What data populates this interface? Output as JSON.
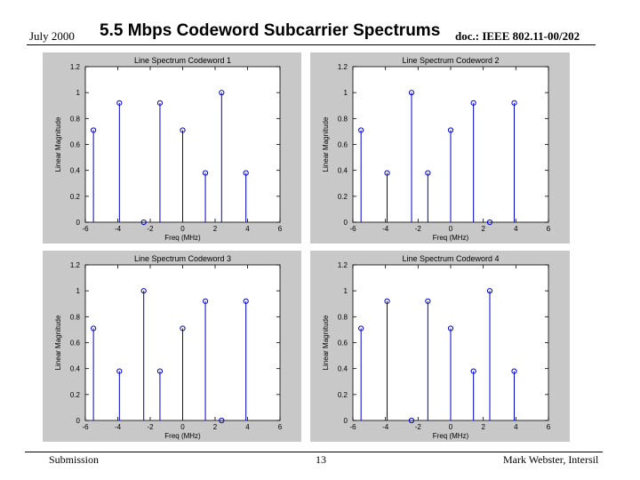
{
  "header": {
    "date": "July 2000",
    "title": "5.5 Mbps Codeword Subcarrier Spectrums",
    "doc": "doc.: IEEE 802.11-00/202"
  },
  "footer": {
    "left": "Submission",
    "page": "13",
    "right": "Mark Webster, Intersil"
  },
  "colors": {
    "stem": "#0000cc",
    "panel_bg": "#c8c8c8",
    "plot_bg": "#ffffff"
  },
  "chart_data": [
    {
      "type": "scatter",
      "title": "Line Spectrum Codeword 1",
      "xlabel": "Freq (MHz)",
      "ylabel": "Linear Magnitude",
      "xlim": [
        -6,
        6
      ],
      "ylim": [
        0,
        1.2
      ],
      "xticks": [
        "-6",
        "-4",
        "-2",
        "0",
        "2",
        "4",
        "6"
      ],
      "yticks": [
        "0",
        "0.2",
        "0.4",
        "0.6",
        "0.8",
        "1",
        "1.2"
      ],
      "x": [
        -5.5,
        -3.9,
        -2.4,
        -1.4,
        0,
        1.4,
        2.4,
        3.9
      ],
      "y": [
        0.71,
        0.92,
        0.0,
        0.92,
        0.71,
        0.38,
        1.0,
        0.38
      ]
    },
    {
      "type": "scatter",
      "title": "Line Spectrum Codeword 2",
      "xlabel": "Freq (MHz)",
      "ylabel": "Linear Magnitude",
      "xlim": [
        -6,
        6
      ],
      "ylim": [
        0,
        1.2
      ],
      "xticks": [
        "-6",
        "-4",
        "-2",
        "0",
        "2",
        "4",
        "6"
      ],
      "yticks": [
        "0",
        "0.2",
        "0.4",
        "0.6",
        "0.8",
        "1",
        "1.2"
      ],
      "x": [
        -5.5,
        -3.9,
        -2.4,
        -1.4,
        0,
        1.4,
        2.4,
        3.9
      ],
      "y": [
        0.71,
        0.38,
        1.0,
        0.38,
        0.71,
        0.92,
        0.0,
        0.92
      ]
    },
    {
      "type": "scatter",
      "title": "Line Spectrum Codeword 3",
      "xlabel": "Freq (MHz)",
      "ylabel": "Linear Magnitude",
      "xlim": [
        -6,
        6
      ],
      "ylim": [
        0,
        1.2
      ],
      "xticks": [
        "-6",
        "-4",
        "-2",
        "0",
        "2",
        "4",
        "6"
      ],
      "yticks": [
        "0",
        "0.2",
        "0.4",
        "0.6",
        "0.8",
        "1",
        "1.2"
      ],
      "x": [
        -5.5,
        -3.9,
        -2.4,
        -1.4,
        0,
        1.4,
        2.4,
        3.9
      ],
      "y": [
        0.71,
        0.38,
        1.0,
        0.38,
        0.71,
        0.92,
        0.0,
        0.92
      ]
    },
    {
      "type": "scatter",
      "title": "Line Spectrum Codeword 4",
      "xlabel": "Freq (MHz)",
      "ylabel": "Linear Magnitude",
      "xlim": [
        -6,
        6
      ],
      "ylim": [
        0,
        1.2
      ],
      "xticks": [
        "-6",
        "-4",
        "-2",
        "0",
        "2",
        "4",
        "6"
      ],
      "yticks": [
        "0",
        "0.2",
        "0.4",
        "0.6",
        "0.8",
        "1",
        "1.2"
      ],
      "x": [
        -5.5,
        -3.9,
        -2.4,
        -1.4,
        0,
        1.4,
        2.4,
        3.9
      ],
      "y": [
        0.71,
        0.92,
        0.0,
        0.92,
        0.71,
        0.38,
        1.0,
        0.38
      ]
    }
  ]
}
